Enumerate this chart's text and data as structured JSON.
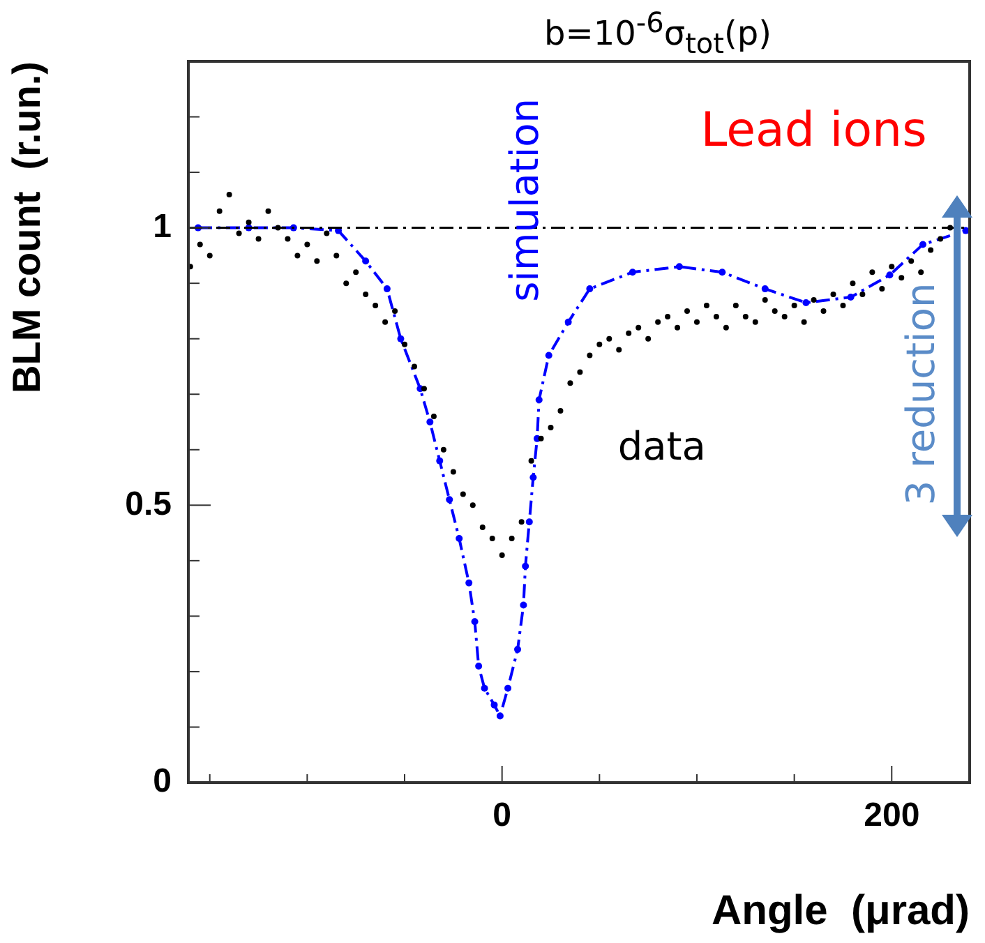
{
  "chart_data": {
    "type": "scatter",
    "title": "b=10$^{-6}$σ$_{tot}$(p)",
    "xlabel": "Angle  (μrad)",
    "ylabel": "BLM count  (r.un.)",
    "annotations": [
      "Lead ions",
      "3 reduction"
    ],
    "xlim": [
      -161,
      240
    ],
    "xticks": [
      {
        "value": -150,
        "label": null
      },
      {
        "value": -100,
        "label": null
      },
      {
        "value": -50,
        "label": null
      },
      0,
      {
        "value": 50,
        "label": null
      },
      {
        "value": 100,
        "label": null
      },
      {
        "value": 150,
        "label": null
      },
      200
    ],
    "ylim": [
      0,
      1.3
    ],
    "yticks": [
      0,
      {
        "value": 0.1,
        "label": null
      },
      {
        "value": 0.2,
        "label": null
      },
      {
        "value": 0.3,
        "label": null
      },
      {
        "value": 0.4,
        "label": null
      },
      0.5,
      {
        "value": 0.6,
        "label": null
      },
      {
        "value": 0.7,
        "label": null
      },
      {
        "value": 0.8,
        "label": null
      },
      {
        "value": 0.9,
        "label": null
      },
      1,
      {
        "value": 1.1,
        "label": null
      },
      {
        "value": 1.2,
        "label": null
      }
    ],
    "grid": false,
    "legend": false,
    "ref_lines": [
      {
        "axis": "y",
        "value": 1,
        "color": "#000000",
        "line_style": "dashed"
      }
    ],
    "series": [
      {
        "name": "data",
        "color": "#000000",
        "marker": "circle",
        "x": [
          -160,
          -155,
          -150,
          -145,
          -140,
          -135,
          -130,
          -125,
          -120,
          -115,
          -110,
          -105,
          -100,
          -95,
          -90,
          -85,
          -80,
          -75,
          -70,
          -65,
          -60,
          -55,
          -50,
          -45,
          -40,
          -35,
          -30,
          -25,
          -20,
          -15,
          -10,
          -5,
          0,
          5,
          10,
          15,
          20,
          25,
          30,
          35,
          40,
          45,
          50,
          55,
          60,
          65,
          70,
          75,
          80,
          85,
          90,
          95,
          100,
          105,
          110,
          115,
          120,
          125,
          130,
          135,
          140,
          145,
          150,
          155,
          160,
          165,
          170,
          175,
          180,
          185,
          190,
          195,
          200,
          205,
          210,
          215,
          220,
          225,
          230
        ],
        "values": [
          0.93,
          0.97,
          0.95,
          1.03,
          1.06,
          0.99,
          1.01,
          0.98,
          1.03,
          1.0,
          0.98,
          0.95,
          0.97,
          0.94,
          0.99,
          0.95,
          0.9,
          0.92,
          0.88,
          0.86,
          0.83,
          0.85,
          0.79,
          0.75,
          0.71,
          0.66,
          0.6,
          0.56,
          0.52,
          0.5,
          0.46,
          0.44,
          0.41,
          0.44,
          0.47,
          0.58,
          0.62,
          0.64,
          0.67,
          0.72,
          0.74,
          0.77,
          0.79,
          0.8,
          0.78,
          0.81,
          0.82,
          0.8,
          0.83,
          0.84,
          0.82,
          0.85,
          0.83,
          0.86,
          0.84,
          0.82,
          0.86,
          0.84,
          0.83,
          0.87,
          0.85,
          0.84,
          0.86,
          0.83,
          0.87,
          0.85,
          0.88,
          0.86,
          0.9,
          0.88,
          0.92,
          0.89,
          0.93,
          0.91,
          0.94,
          0.92,
          0.96,
          0.98,
          1.0
        ]
      },
      {
        "name": "simulation",
        "type": "line",
        "color": "#0000ff",
        "marker": "circle",
        "line_style": "dashed",
        "x": [
          -156,
          -130,
          -107,
          -84,
          -70,
          -59,
          -52,
          -42,
          -37,
          -32,
          -27,
          -22,
          -17,
          -14,
          -12,
          -9,
          -4,
          -1,
          3,
          8,
          11,
          12,
          14,
          16,
          18,
          19,
          24,
          34,
          45,
          67,
          91,
          113,
          135,
          156,
          179,
          199,
          216,
          238
        ],
        "values": [
          1.0,
          1.0,
          1.0,
          0.995,
          0.94,
          0.89,
          0.8,
          0.71,
          0.65,
          0.58,
          0.51,
          0.44,
          0.36,
          0.29,
          0.21,
          0.17,
          0.14,
          0.12,
          0.17,
          0.24,
          0.32,
          0.39,
          0.47,
          0.55,
          0.62,
          0.69,
          0.77,
          0.83,
          0.89,
          0.92,
          0.93,
          0.92,
          0.89,
          0.865,
          0.875,
          0.915,
          0.97,
          0.995
        ]
      }
    ]
  }
}
